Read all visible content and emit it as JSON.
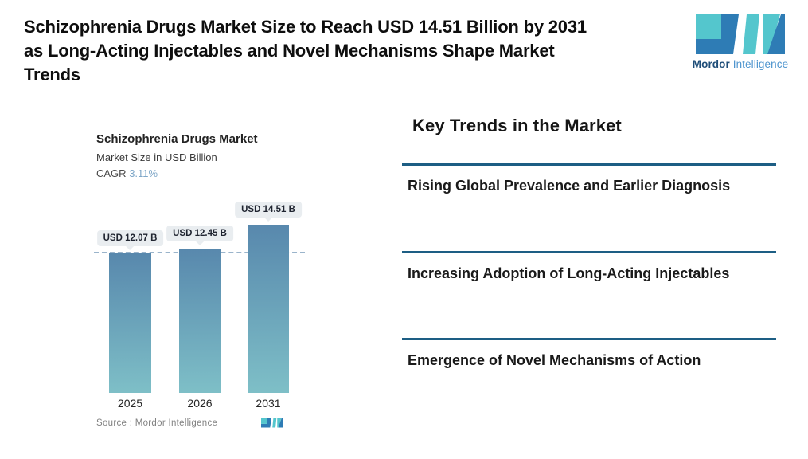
{
  "header": {
    "title_lines": [
      "Schizophrenia Drugs Market Size to Reach USD 14.51 Billion by 2031",
      "as Long-Acting Injectables and Novel Mechanisms Shape Market",
      "Trends"
    ],
    "brand": {
      "name_bold": "Mordor",
      "name_light": "Intelligence"
    }
  },
  "chart": {
    "title": "Schizophrenia Drugs Market",
    "subtitle": "Market Size in USD Billion",
    "cagr_label": "CAGR",
    "cagr_value": "3.11%",
    "source_text": "Source :  Mordor Intelligence"
  },
  "chart_data": {
    "type": "bar",
    "title": "Schizophrenia Drugs Market",
    "ylabel": "Market Size in USD Billion",
    "cagr_percent": 3.11,
    "categories": [
      "2025",
      "2026",
      "2031"
    ],
    "values": [
      12.07,
      12.45,
      14.51
    ],
    "value_labels": [
      "USD 12.07 B",
      "USD 12.45 B",
      "USD 14.51 B"
    ],
    "ylim": [
      0,
      16
    ],
    "grid": false,
    "legend": "none",
    "reference_line": {
      "style": "dashed",
      "at_value": 12.07
    },
    "bar_gradient": [
      "#5888ad",
      "#7ebfc7"
    ]
  },
  "trends": {
    "title": "Key Trends in the Market",
    "items": [
      {
        "label": "Rising Global Prevalence and Earlier Diagnosis"
      },
      {
        "label": "Increasing Adoption of Long-Acting Injectables"
      },
      {
        "label": "Emergence of Novel Mechanisms of Action"
      }
    ]
  },
  "colors": {
    "divider": "#1d5e84",
    "bar_top": "#5888ad",
    "bar_bottom": "#7ebfc7",
    "dashed_line": "#9ab4cb",
    "bubble_bg": "#e9edf0",
    "cagr_value": "#7fa7c8",
    "logo_blue": "#2e7cb5",
    "logo_teal": "#54c6cd",
    "brand_navy": "#1f4e79",
    "brand_light_blue": "#4d94ce",
    "source_text": "#828282"
  }
}
